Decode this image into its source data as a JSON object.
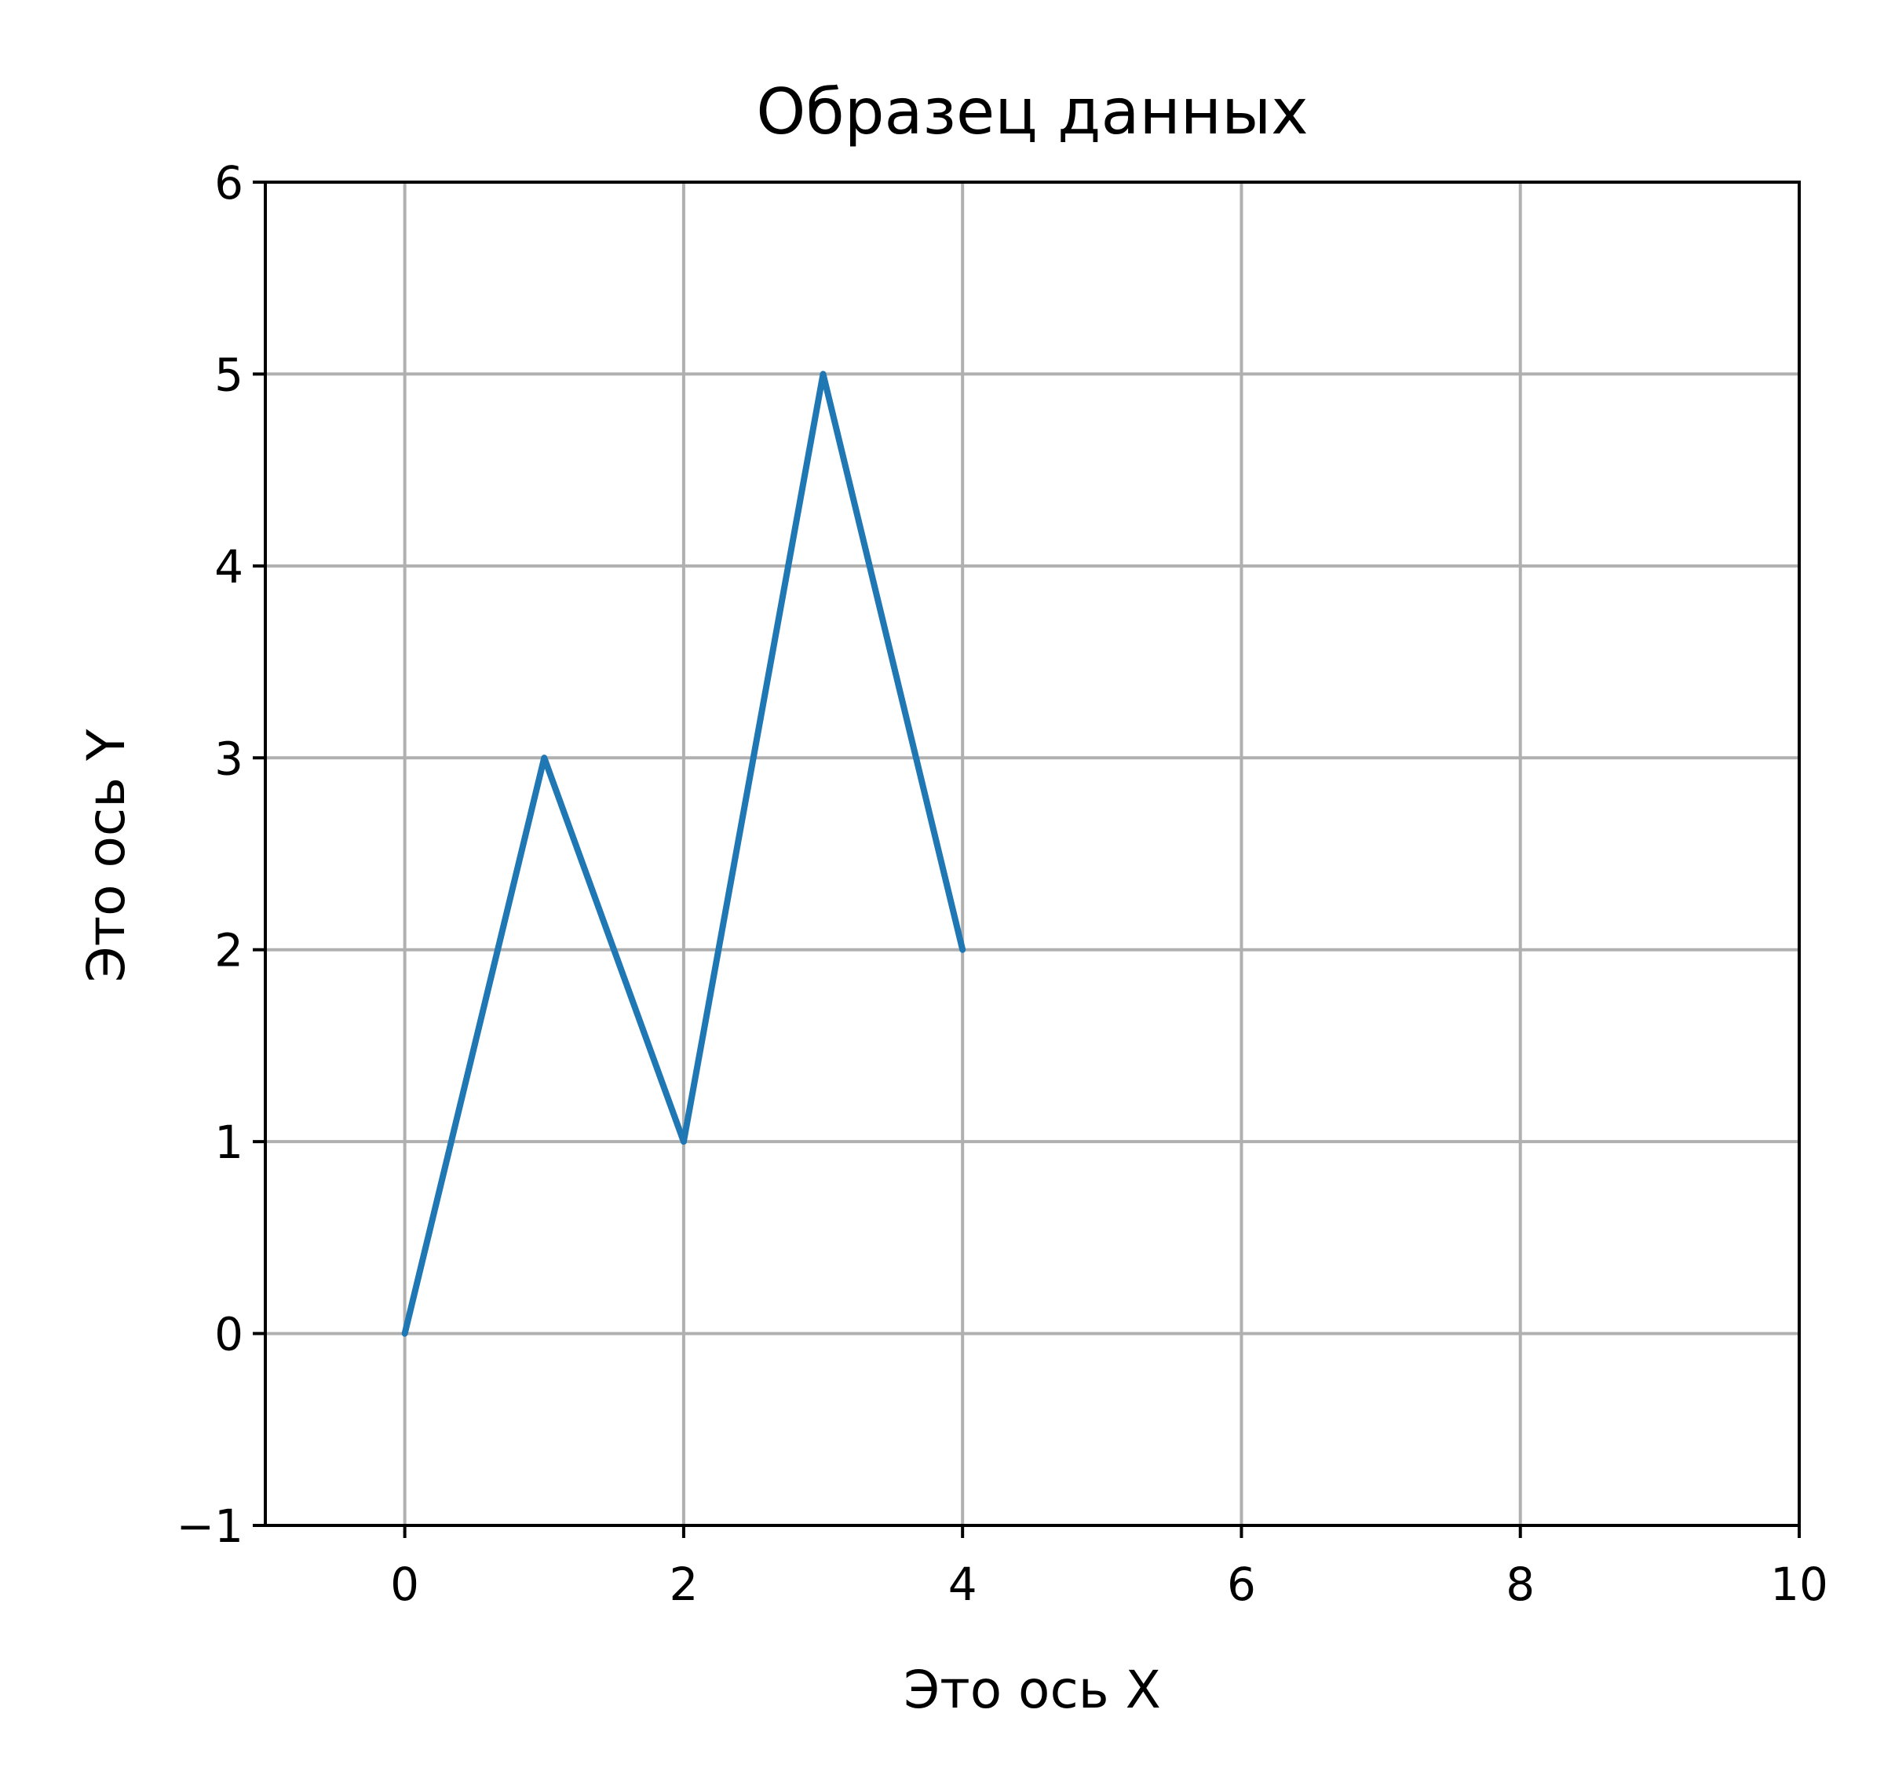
{
  "chart_data": {
    "type": "line",
    "title": "Образец данных",
    "xlabel": "Это ось X",
    "ylabel": "Это ось Y",
    "xlim": [
      -1,
      10
    ],
    "ylim": [
      -1,
      6
    ],
    "grid": true,
    "x_ticks": [
      0,
      2,
      4,
      6,
      8,
      10
    ],
    "y_ticks": [
      -1,
      0,
      1,
      2,
      3,
      4,
      5,
      6
    ],
    "x_tick_labels": [
      "0",
      "2",
      "4",
      "6",
      "8",
      "10"
    ],
    "y_tick_labels": [
      "−1",
      "0",
      "1",
      "2",
      "3",
      "4",
      "5",
      "6"
    ],
    "series": [
      {
        "x": [
          0,
          1,
          2,
          3,
          4
        ],
        "y": [
          0,
          3,
          1,
          5,
          2
        ],
        "color": "#1f77b4"
      }
    ],
    "grid_color": "#b0b0b0",
    "axis_color": "#000000"
  }
}
